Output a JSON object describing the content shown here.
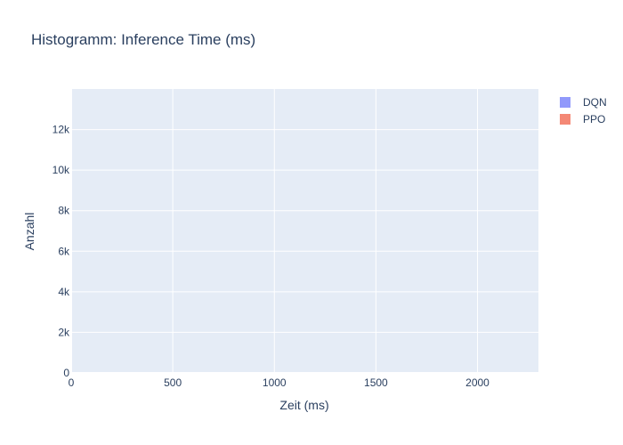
{
  "chart_data": {
    "type": "bar",
    "title": "Histogramm: Inference Time (ms)",
    "xlabel": "Zeit (ms)",
    "ylabel": "Anzahl",
    "xlim": [
      0,
      2300
    ],
    "ylim": [
      0,
      14000
    ],
    "x_ticks": [
      0,
      500,
      1000,
      1500,
      2000
    ],
    "x_tick_labels": [
      "0",
      "500",
      "1000",
      "1500",
      "2000"
    ],
    "y_ticks": [
      0,
      2000,
      4000,
      6000,
      8000,
      10000,
      12000
    ],
    "y_tick_labels": [
      "0",
      "2k",
      "4k",
      "6k",
      "8k",
      "10k",
      "12k"
    ],
    "grid": true,
    "legend_position": "top-right",
    "series": [
      {
        "name": "DQN",
        "color": "#636efa",
        "opacity": 0.7,
        "values": []
      },
      {
        "name": "PPO",
        "color": "#ef553b",
        "opacity": 0.7,
        "values": []
      }
    ],
    "plot_bg": "#e5ecf6"
  }
}
